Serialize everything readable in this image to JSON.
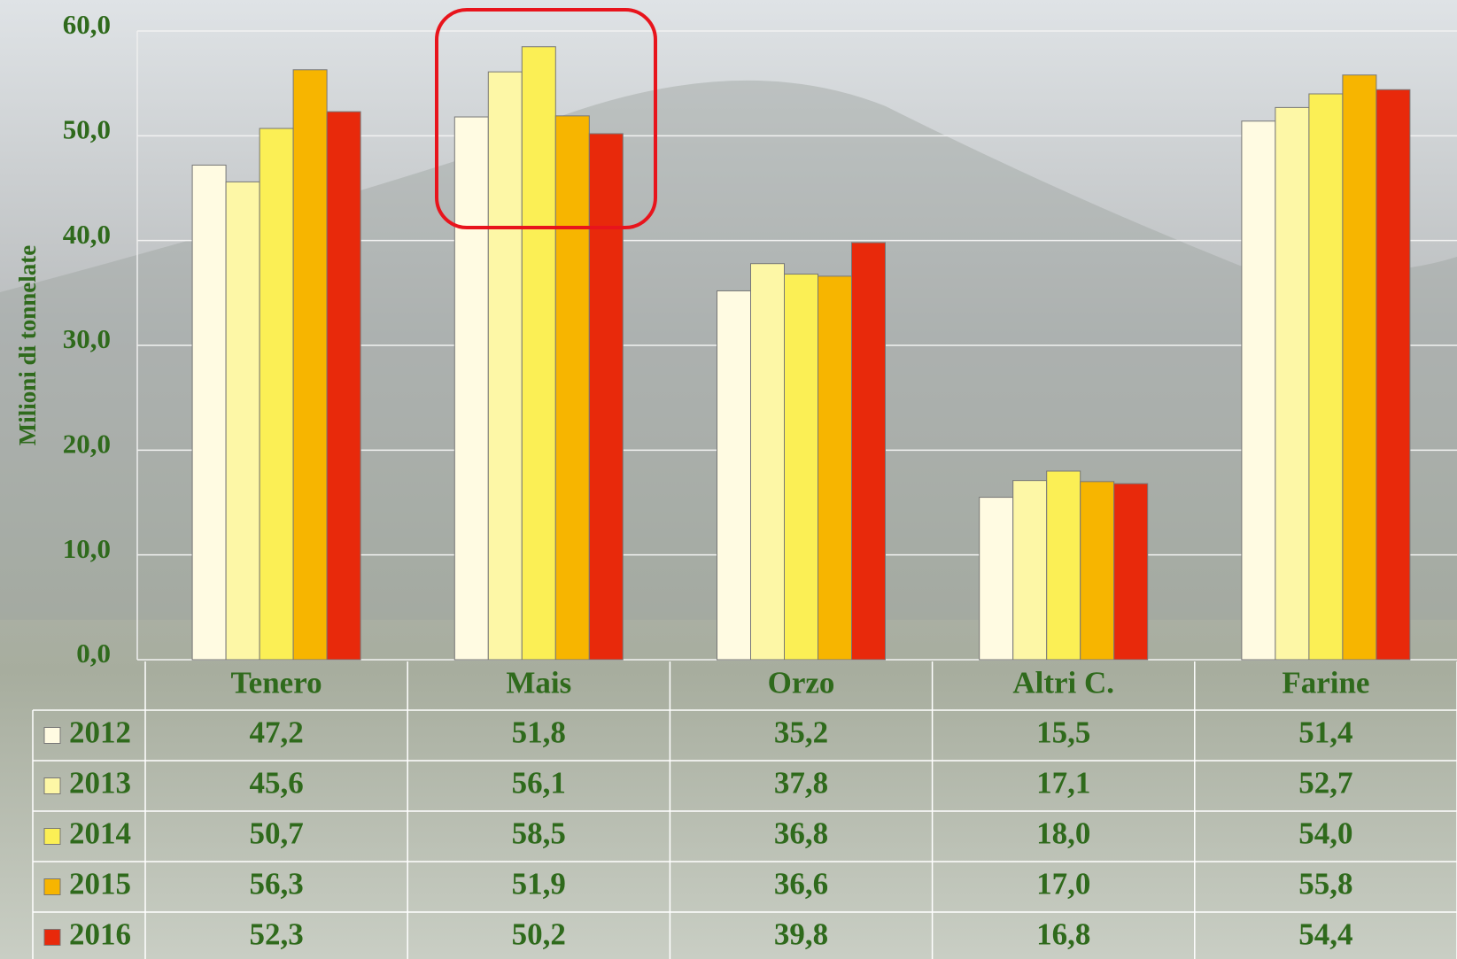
{
  "chart_data": {
    "type": "bar",
    "y_label": "Milioni di tonnelate",
    "categories": [
      "Tenero",
      "Mais",
      "Orzo",
      "Altri C.",
      "Farine"
    ],
    "series": [
      {
        "name": "2012",
        "color": "#fffbe2",
        "values": [
          47.2,
          51.8,
          35.2,
          15.5,
          51.4
        ],
        "value_labels": [
          "47,2",
          "51,8",
          "35,2",
          "15,5",
          "51,4"
        ]
      },
      {
        "name": "2013",
        "color": "#fdf7a6",
        "values": [
          45.6,
          56.1,
          37.8,
          17.1,
          52.7
        ],
        "value_labels": [
          "45,6",
          "56,1",
          "37,8",
          "17,1",
          "52,7"
        ]
      },
      {
        "name": "2014",
        "color": "#fbef55",
        "values": [
          50.7,
          58.5,
          36.8,
          18.0,
          54.0
        ],
        "value_labels": [
          "50,7",
          "58,5",
          "36,8",
          "18,0",
          "54,0"
        ]
      },
      {
        "name": "2015",
        "color": "#f7b500",
        "values": [
          56.3,
          51.9,
          36.6,
          17.0,
          55.8
        ],
        "value_labels": [
          "56,3",
          "51,9",
          "36,6",
          "17,0",
          "55,8"
        ]
      },
      {
        "name": "2016",
        "color": "#e8290b",
        "values": [
          52.3,
          50.2,
          39.8,
          16.8,
          54.4
        ],
        "value_labels": [
          "52,3",
          "50,2",
          "39,8",
          "16,8",
          "54,4"
        ]
      }
    ],
    "ylim": [
      0,
      60
    ],
    "yticks": [
      {
        "value": 0,
        "label": "0,0"
      },
      {
        "value": 10,
        "label": "10,0"
      },
      {
        "value": 20,
        "label": "20,0"
      },
      {
        "value": 30,
        "label": "30,0"
      },
      {
        "value": 40,
        "label": "40,0"
      },
      {
        "value": 50,
        "label": "50,0"
      },
      {
        "value": 60,
        "label": "60,0"
      }
    ],
    "grid": true
  }
}
